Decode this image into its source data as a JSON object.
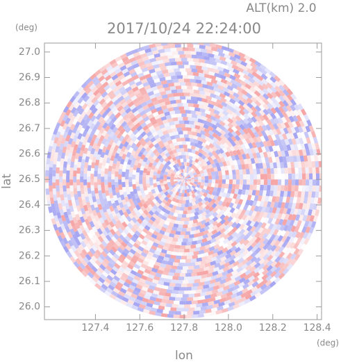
{
  "chart_data": {
    "type": "radar-ppi",
    "title": "2017/10/24 22:24:00",
    "subtitle": "ALT(km) 2.0",
    "x_label": "lon",
    "y_label": "lat",
    "x_unit": "(deg)",
    "y_unit": "(deg)",
    "xlim": [
      127.17,
      128.42
    ],
    "ylim": [
      25.95,
      27.035
    ],
    "xticks": [
      127.4,
      127.6,
      127.8,
      {
        "value": 128.0,
        "label": "128.0"
      },
      128.2,
      128.4
    ],
    "yticks": [
      {
        "value": 26.0,
        "label": "26.0"
      },
      26.1,
      26.2,
      26.3,
      26.4,
      26.5,
      26.6,
      26.7,
      26.8,
      26.9,
      {
        "value": 27.0,
        "label": "27.0"
      }
    ],
    "center": [
      127.8,
      26.5
    ]
  }
}
